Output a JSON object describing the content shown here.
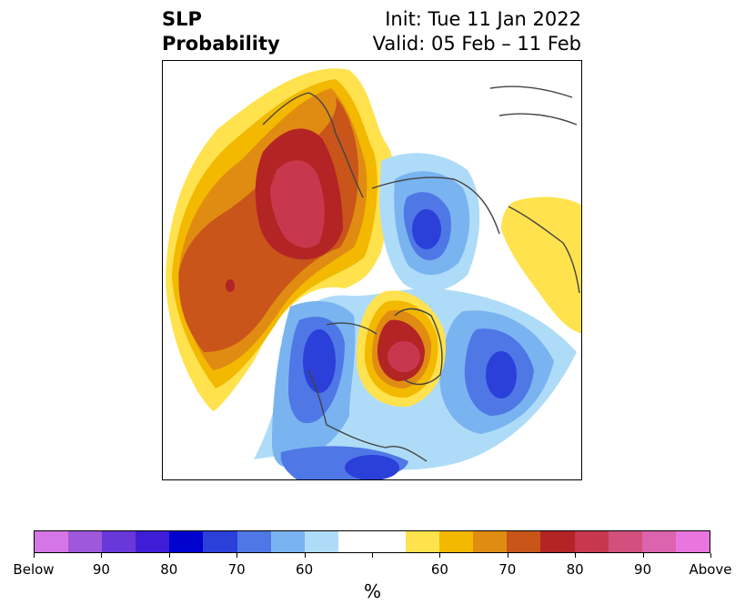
{
  "header": {
    "title_left": "SLP\nProbability",
    "title_right": "Init: Tue 11 Jan 2022\nValid: 05 Feb – 11 Feb"
  },
  "map": {
    "projection": "north-polar-stereographic",
    "colors": {
      "above_60": "#ffe24d",
      "above_65": "#f3b800",
      "above_70": "#e08c12",
      "above_75": "#c9551a",
      "above_80": "#b32424",
      "above_85": "#c7384e",
      "below_60": "#aedcf8",
      "below_65": "#79b4f0",
      "below_70": "#4f77e6",
      "below_75": "#2a40d8",
      "coastline": "#444444"
    }
  },
  "colorbar": {
    "colors": [
      "#d576e6",
      "#9f58dc",
      "#6a38d8",
      "#3d1ed6",
      "#0202cf",
      "#2a40d8",
      "#4f77e6",
      "#79b4f0",
      "#aedcf8",
      "#ffffff",
      "#ffffff",
      "#ffe24d",
      "#f3b800",
      "#e08c12",
      "#c9551a",
      "#b32424",
      "#c7384e",
      "#d24f7e",
      "#dc64ae",
      "#e876de"
    ],
    "tick_labels": [
      "Below",
      "90",
      "80",
      "70",
      "60",
      "60",
      "70",
      "80",
      "90",
      "Above"
    ],
    "unit": "%"
  }
}
